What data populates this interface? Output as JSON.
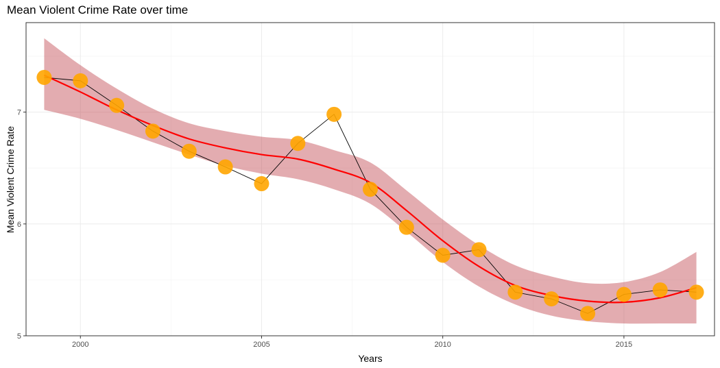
{
  "chart_data": {
    "type": "line",
    "title": "Mean Violent Crime Rate over time",
    "xlabel": "Years",
    "ylabel": "Mean Violent Crime Rate",
    "xlim": [
      1998.5,
      2017.5
    ],
    "ylim": [
      5.0,
      7.8
    ],
    "x_ticks": [
      2000,
      2005,
      2010,
      2015
    ],
    "y_ticks": [
      5,
      6,
      7
    ],
    "grid": true,
    "legend": "none",
    "colors": {
      "points": "#FFA500",
      "line": "#000000",
      "smooth": "#FF0000",
      "band": "#C0474F",
      "grid_major": "#ebebeb",
      "grid_minor": "#f5f5f5",
      "panel_border": "#333333"
    },
    "series": [
      {
        "type": "scatter+line",
        "x": [
          1999,
          2000,
          2001,
          2002,
          2003,
          2004,
          2005,
          2006,
          2007,
          2008,
          2009,
          2010,
          2011,
          2012,
          2013,
          2014,
          2015,
          2016,
          2017
        ],
        "y": [
          7.31,
          7.28,
          7.06,
          6.83,
          6.65,
          6.51,
          6.36,
          6.72,
          6.98,
          6.31,
          5.97,
          5.72,
          5.77,
          5.39,
          5.33,
          5.2,
          5.37,
          5.41,
          5.39
        ]
      },
      {
        "type": "smooth",
        "x": [
          1999,
          2000,
          2001,
          2002,
          2003,
          2004,
          2005,
          2006,
          2007,
          2008,
          2009,
          2010,
          2011,
          2012,
          2013,
          2014,
          2015,
          2016,
          2017
        ],
        "y": [
          7.33,
          7.18,
          7.02,
          6.88,
          6.76,
          6.68,
          6.62,
          6.58,
          6.49,
          6.37,
          6.12,
          5.85,
          5.62,
          5.45,
          5.36,
          5.31,
          5.3,
          5.34,
          5.43
        ],
        "lower": [
          7.02,
          6.94,
          6.84,
          6.73,
          6.62,
          6.52,
          6.45,
          6.4,
          6.31,
          6.18,
          5.93,
          5.66,
          5.44,
          5.28,
          5.18,
          5.13,
          5.11,
          5.11,
          5.11
        ],
        "upper": [
          7.66,
          7.42,
          7.21,
          7.03,
          6.9,
          6.83,
          6.78,
          6.75,
          6.66,
          6.55,
          6.3,
          6.04,
          5.81,
          5.63,
          5.53,
          5.47,
          5.48,
          5.57,
          5.75
        ]
      }
    ]
  }
}
